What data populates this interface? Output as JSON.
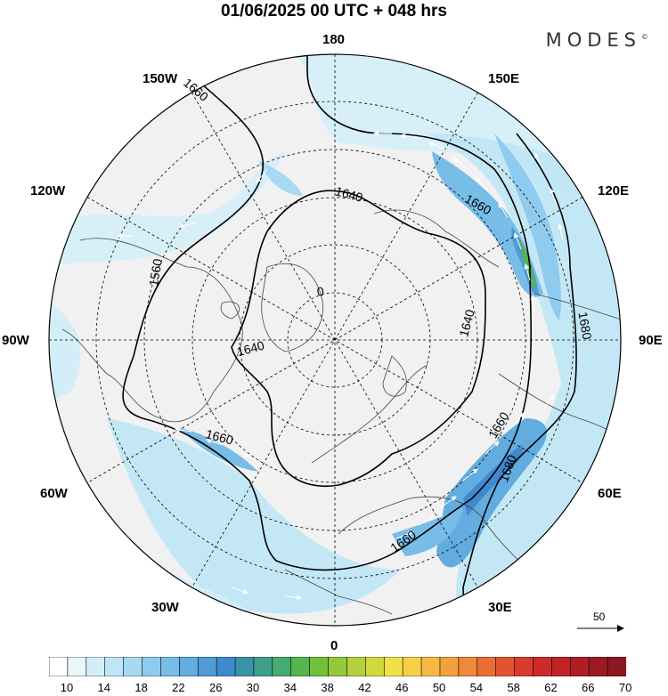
{
  "title": "01/06/2025  00 UTC  + 048 hrs",
  "brand": "MODES",
  "brand_mark": "©",
  "longitude_labels": {
    "n": "180",
    "s": "0",
    "e": "90E",
    "w": "90W",
    "ne1": "150E",
    "ne2": "120E",
    "se1": "60E",
    "se2": "30E",
    "nw1": "150W",
    "nw2": "120W",
    "sw1": "60W",
    "sw2": "30W"
  },
  "contour_labels": [
    "1660",
    "1640",
    "1560",
    "1640",
    "1660",
    "1640",
    "1660",
    "1680",
    "1660",
    "1680",
    "1660",
    "0"
  ],
  "scale_vector_label": "50",
  "colorbar": {
    "labels": [
      "10",
      "14",
      "18",
      "22",
      "26",
      "30",
      "34",
      "38",
      "42",
      "46",
      "50",
      "54",
      "58",
      "62",
      "66",
      "70"
    ],
    "colors": [
      "#ffffff",
      "#eaf6fc",
      "#d4eef9",
      "#bfe5f6",
      "#a7d9f2",
      "#8fcbee",
      "#78bce8",
      "#62acdf",
      "#4f9bd6",
      "#3f8acd",
      "#3b93a8",
      "#3e9f8c",
      "#45ab6f",
      "#56b54f",
      "#73bf3d",
      "#93c93a",
      "#b2d13b",
      "#d2d93c",
      "#f1e04a",
      "#f7d04a",
      "#f6b944",
      "#f3a13e",
      "#ef8839",
      "#e96e35",
      "#e25431",
      "#d93b2e",
      "#cf2a2b",
      "#c02228",
      "#b01d25",
      "#9d1a22",
      "#8c1720"
    ]
  }
}
